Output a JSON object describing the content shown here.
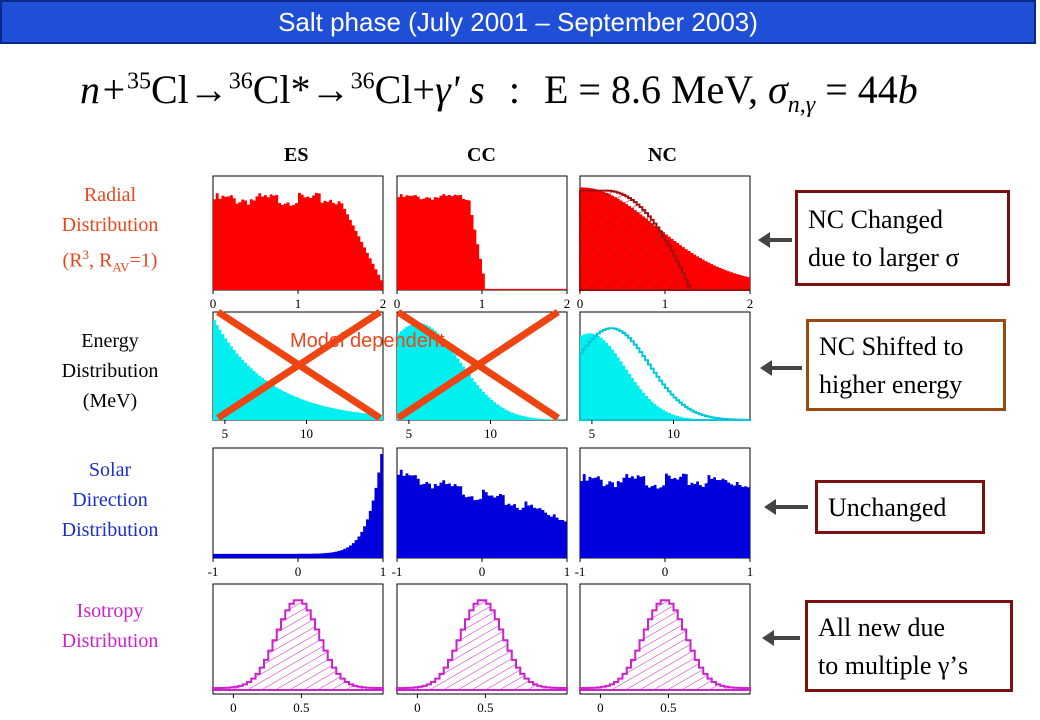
{
  "title": "Salt phase (July 2001 – September 2003)",
  "equation": {
    "n": "n+",
    "a35": "35",
    "cl1": "Cl",
    "arr1": "→",
    "a36a": "36",
    "cl2": "Cl*",
    "arr2": "→",
    "a36b": "36",
    "cl3": "Cl",
    "plus": "+",
    "gam": "γ' s",
    "colon": ":",
    "energy": "E = 8.6 MeV,",
    "sigma": "σ",
    "sub": "n,γ",
    "value": "= 44",
    "unit": "b"
  },
  "columns": [
    "ES",
    "CC",
    "NC"
  ],
  "rows": {
    "radial": {
      "l1": "Radial",
      "l2": "Distribution",
      "l3a": "(R",
      "l3sup": "3",
      "l3b": ", R",
      "l3sub": "AV",
      "l3c": "=1)"
    },
    "energy": {
      "l1": "Energy",
      "l2": "Distribution",
      "l3": "(MeV)"
    },
    "solar": {
      "l1": "Solar",
      "l2": "Direction",
      "l3": "Distribution"
    },
    "isotropy": {
      "l1": "Isotropy",
      "l2": "Distribution"
    }
  },
  "ticks": {
    "radial": [
      "0",
      "1",
      "2"
    ],
    "energy": [
      "5",
      "10"
    ],
    "solar": [
      "-1",
      "0",
      "1"
    ],
    "isotropy": [
      "0",
      "0.5"
    ]
  },
  "notes": {
    "nc_changed_1": "NC Changed",
    "nc_changed_2": "due to larger σ",
    "nc_shifted_1": "NC Shifted to",
    "nc_shifted_2": "higher energy",
    "unchanged": "Unchanged",
    "all_new_1": "All new due",
    "all_new_2": "to multiple γ’s"
  },
  "model_dependent": "Model dependent",
  "colors": {
    "title_bg": "#1e4fd6",
    "radial_label": "#e8471e",
    "energy_label": "#000000",
    "solar_label": "#1a2fc8",
    "isotropy_label": "#cc22cc",
    "radial_fill": "#ff0000",
    "energy_fill": "#00f0f0",
    "solar_fill": "#0000dd",
    "isotropy_line": "#cc22cc",
    "cross": "#ee4411"
  }
}
